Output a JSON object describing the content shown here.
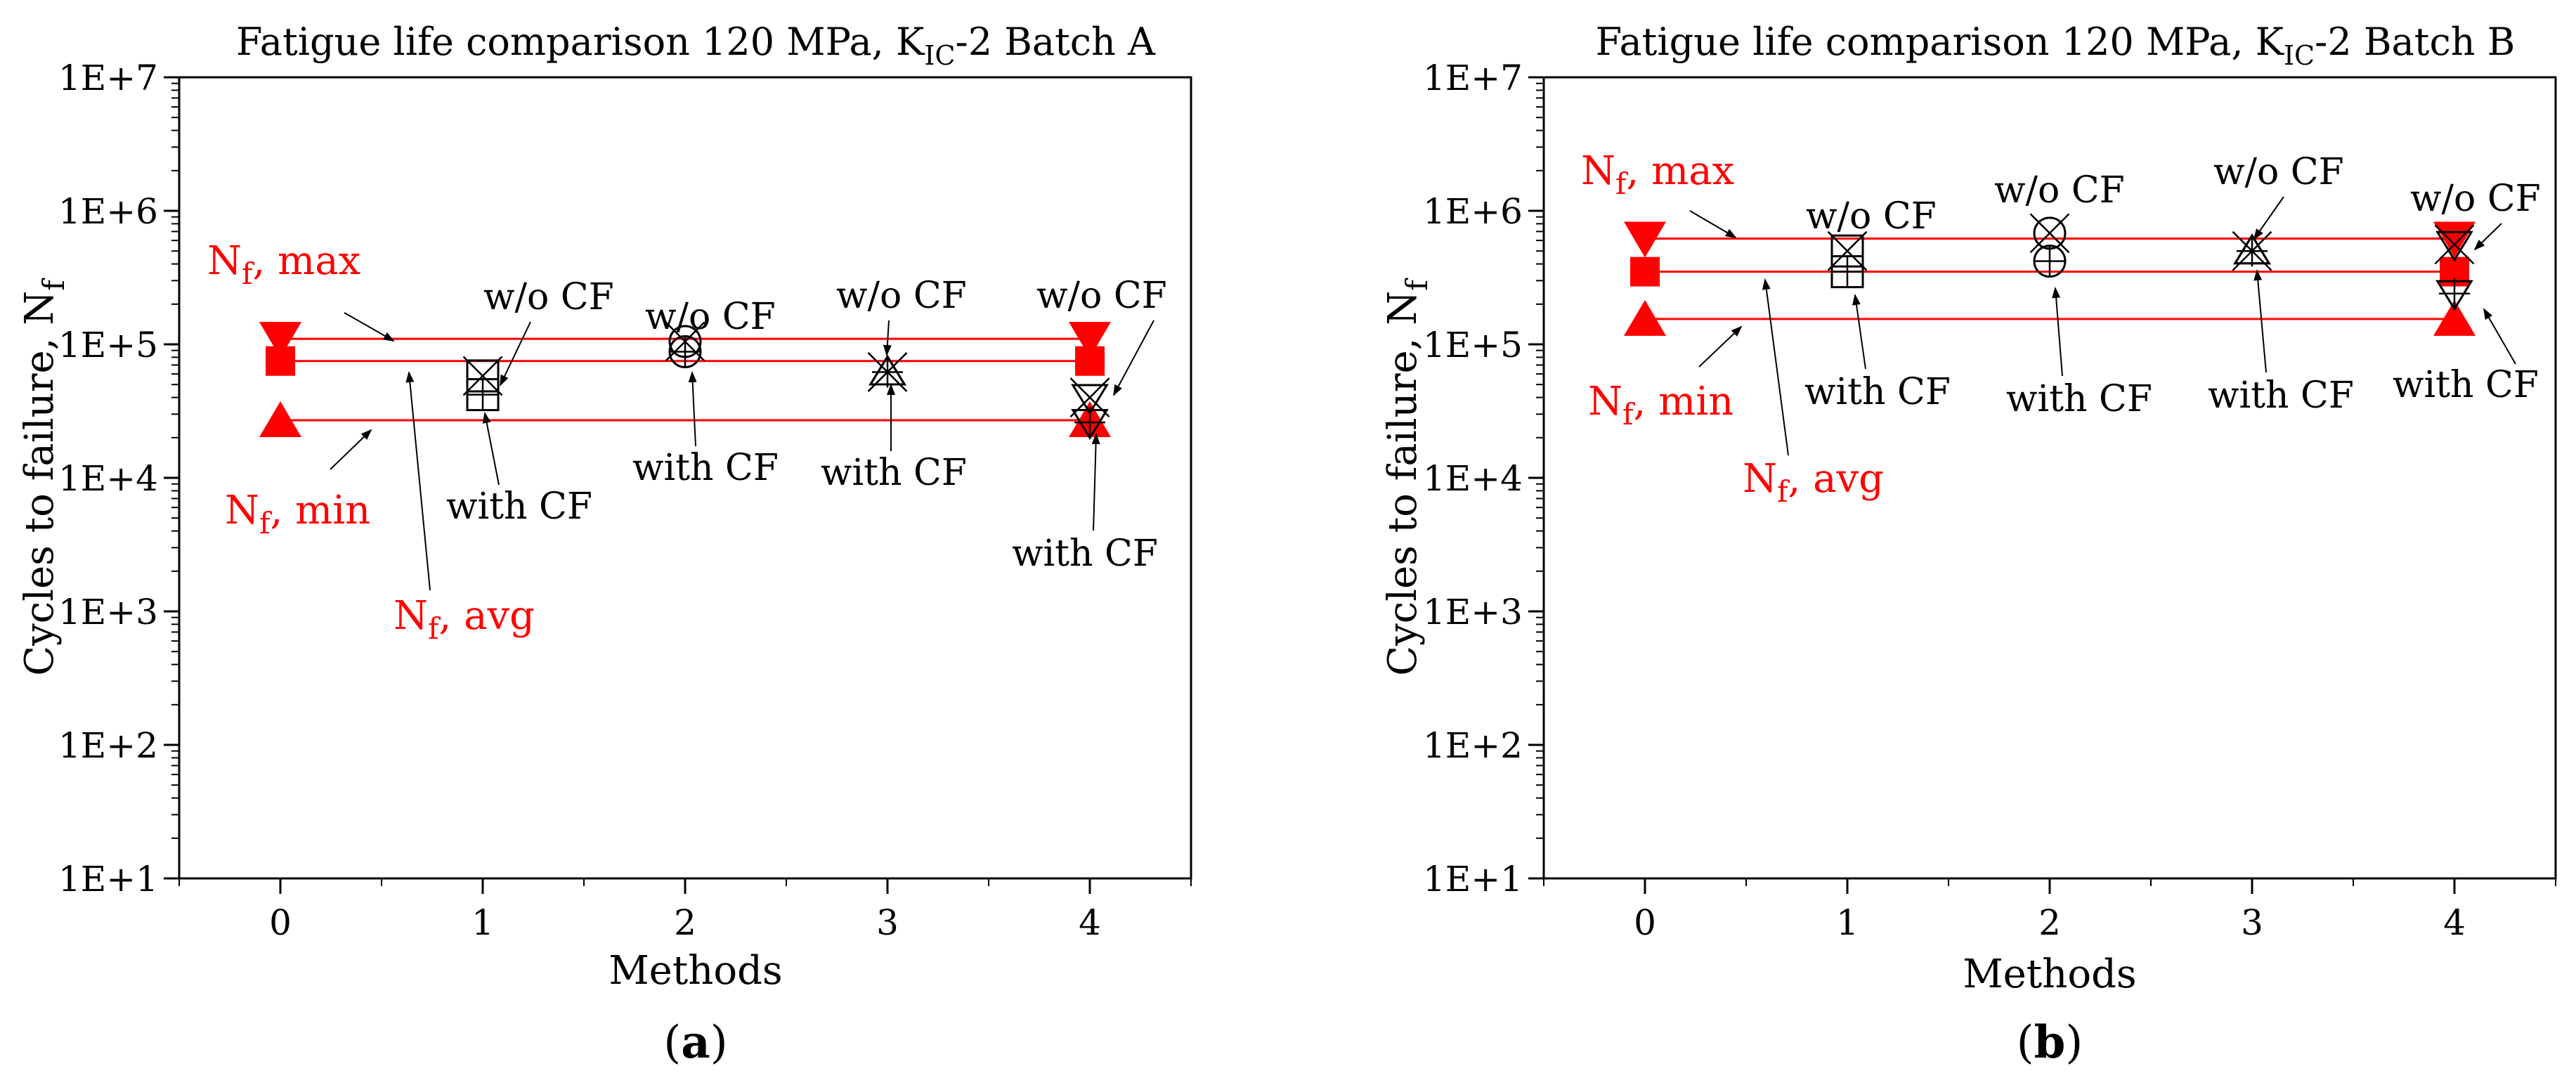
{
  "chart_data": [
    {
      "panel": "a",
      "panel_label": "a",
      "type": "scatter",
      "title_prefix": "Fatigue life comparison 120 MPa, K",
      "title_sub": "IC",
      "title_suffix": "-2 Batch A",
      "xlabel": "Methods",
      "ylabel_main": "Cycles to failure, N",
      "ylabel_sub": "f",
      "x_ticks": [
        0,
        1,
        2,
        3,
        4
      ],
      "y_ticks": [
        10,
        100,
        1000,
        10000,
        100000,
        1000000,
        10000000
      ],
      "y_tick_labels": [
        "1E+1",
        "1E+2",
        "1E+3",
        "1E+4",
        "1E+5",
        "1E+6",
        "1E+7"
      ],
      "xlim": [
        -0.5,
        4.5
      ],
      "ylim": [
        10,
        10000000
      ],
      "y_scale": "log",
      "colors": {
        "reference": "#ff0000",
        "methods": "#000000"
      },
      "reference_lines": {
        "max": 110000,
        "avg": 75000,
        "min": 27000
      },
      "reference_points": {
        "x": 0,
        "max": 110000,
        "avg": 75000,
        "min": 27000
      },
      "reference_points_x4": {
        "x": 4,
        "max": 110000,
        "avg": 75000,
        "min": 27000
      },
      "series": [
        {
          "name": "w/o CF",
          "points": [
            {
              "x": 1,
              "y": 58000
            },
            {
              "x": 2,
              "y": 105000
            },
            {
              "x": 3,
              "y": 62000
            },
            {
              "x": 4,
              "y": 40000
            }
          ]
        },
        {
          "name": "with CF",
          "points": [
            {
              "x": 1,
              "y": 42000
            },
            {
              "x": 2,
              "y": 88000
            },
            {
              "x": 3,
              "y": 62000
            },
            {
              "x": 4,
              "y": 26000
            }
          ]
        }
      ],
      "annotations": {
        "nf_max_sub": "f",
        "nf_max_suffix": ", max",
        "nf_min_sub": "f",
        "nf_min_suffix": ", min",
        "nf_avg_sub": "f",
        "nf_avg_suffix": ", avg",
        "n_letter": "N",
        "wo_cf": "w/o CF",
        "with_cf": "with CF"
      }
    },
    {
      "panel": "b",
      "panel_label": "b",
      "type": "scatter",
      "title_prefix": "Fatigue life comparison 120 MPa, K",
      "title_sub": "IC",
      "title_suffix": "-2 Batch B",
      "xlabel": "Methods",
      "ylabel_main": "Cycles to failure, N",
      "ylabel_sub": "f",
      "x_ticks": [
        0,
        1,
        2,
        3,
        4
      ],
      "y_ticks": [
        10,
        100,
        1000,
        10000,
        100000,
        1000000,
        10000000
      ],
      "y_tick_labels": [
        "1E+1",
        "1E+2",
        "1E+3",
        "1E+4",
        "1E+5",
        "1E+6",
        "1E+7"
      ],
      "xlim": [
        -0.5,
        4.5
      ],
      "ylim": [
        10,
        10000000
      ],
      "y_scale": "log",
      "colors": {
        "reference": "#ff0000",
        "methods": "#000000"
      },
      "reference_lines": {
        "max": 620000,
        "avg": 350000,
        "min": 155000
      },
      "reference_points": {
        "x": 0,
        "max": 620000,
        "avg": 350000,
        "min": 155000
      },
      "reference_points_x4": {
        "x": 4,
        "max": 620000,
        "avg": 350000,
        "min": 155000
      },
      "series": [
        {
          "name": "w/o CF",
          "points": [
            {
              "x": 1,
              "y": 500000
            },
            {
              "x": 2,
              "y": 680000
            },
            {
              "x": 3,
              "y": 500000
            },
            {
              "x": 4,
              "y": 560000
            }
          ]
        },
        {
          "name": "with CF",
          "points": [
            {
              "x": 1,
              "y": 350000
            },
            {
              "x": 2,
              "y": 420000
            },
            {
              "x": 3,
              "y": 500000
            },
            {
              "x": 4,
              "y": 240000
            }
          ]
        }
      ],
      "annotations": {
        "nf_max_sub": "f",
        "nf_max_suffix": ", max",
        "nf_min_sub": "f",
        "nf_min_suffix": ", min",
        "nf_avg_sub": "f",
        "nf_avg_suffix": ", avg",
        "n_letter": "N",
        "wo_cf": "w/o CF",
        "with_cf": "with CF"
      }
    }
  ]
}
